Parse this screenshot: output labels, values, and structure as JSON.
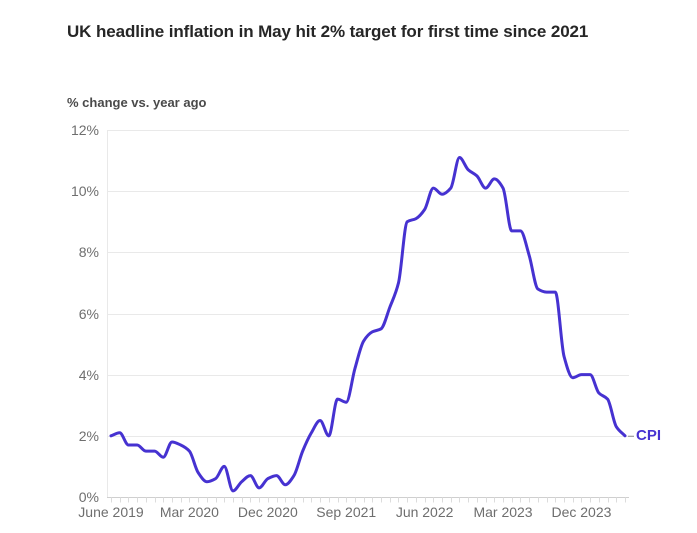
{
  "header": {
    "title": "UK headline inflation in May hit 2% target for first time since 2021",
    "subtitle": "% change vs. year ago"
  },
  "colors": {
    "line": "#4632d1",
    "series_label": "#4632d1",
    "grid": "#e9e9e9",
    "zero_axis": "#cfcfcf",
    "month_tick": "#dcdcdc",
    "axis_label": "#6e6e6e",
    "leader_dash": "#a3a3a3"
  },
  "chart_data": {
    "type": "line",
    "title": "UK headline inflation in May hit 2% target for first time since 2021",
    "ylabel": "% change vs. year ago",
    "x_unit": "month",
    "grid": true,
    "x": [
      "Jun 2019",
      "Jul 2019",
      "Aug 2019",
      "Sep 2019",
      "Oct 2019",
      "Nov 2019",
      "Dec 2019",
      "Jan 2020",
      "Feb 2020",
      "Mar 2020",
      "Apr 2020",
      "May 2020",
      "Jun 2020",
      "Jul 2020",
      "Aug 2020",
      "Sep 2020",
      "Oct 2020",
      "Nov 2020",
      "Dec 2020",
      "Jan 2021",
      "Feb 2021",
      "Mar 2021",
      "Apr 2021",
      "May 2021",
      "Jun 2021",
      "Jul 2021",
      "Aug 2021",
      "Sep 2021",
      "Oct 2021",
      "Nov 2021",
      "Dec 2021",
      "Jan 2022",
      "Feb 2022",
      "Mar 2022",
      "Apr 2022",
      "May 2022",
      "Jun 2022",
      "Jul 2022",
      "Aug 2022",
      "Sep 2022",
      "Oct 2022",
      "Nov 2022",
      "Dec 2022",
      "Jan 2023",
      "Feb 2023",
      "Mar 2023",
      "Apr 2023",
      "May 2023",
      "Jun 2023",
      "Jul 2023",
      "Aug 2023",
      "Sep 2023",
      "Oct 2023",
      "Nov 2023",
      "Dec 2023",
      "Jan 2024",
      "Feb 2024",
      "Mar 2024",
      "Apr 2024",
      "May 2024"
    ],
    "series": [
      {
        "name": "CPI",
        "values": [
          2.0,
          2.1,
          1.7,
          1.7,
          1.5,
          1.5,
          1.3,
          1.8,
          1.7,
          1.5,
          0.8,
          0.5,
          0.6,
          1.0,
          0.2,
          0.5,
          0.7,
          0.3,
          0.6,
          0.7,
          0.4,
          0.7,
          1.5,
          2.1,
          2.5,
          2.0,
          3.2,
          3.1,
          4.2,
          5.1,
          5.4,
          5.5,
          6.2,
          7.0,
          9.0,
          9.1,
          9.4,
          10.1,
          9.9,
          10.1,
          11.1,
          10.7,
          10.5,
          10.1,
          10.4,
          10.1,
          8.7,
          8.7,
          7.9,
          6.8,
          6.7,
          6.7,
          4.6,
          3.9,
          4.0,
          4.0,
          3.4,
          3.2,
          2.3,
          2.0
        ]
      }
    ],
    "y_axis": {
      "range": [
        0,
        12
      ],
      "ticks": [
        0,
        2,
        4,
        6,
        8,
        10,
        12
      ],
      "tick_labels": [
        "0%",
        "2%",
        "4%",
        "6%",
        "8%",
        "10%",
        "12%"
      ]
    },
    "x_axis": {
      "tick_labels": [
        {
          "index": 0,
          "label": "June 2019"
        },
        {
          "index": 9,
          "label": "Mar 2020"
        },
        {
          "index": 18,
          "label": "Dec 2020"
        },
        {
          "index": 27,
          "label": "Sep 2021"
        },
        {
          "index": 36,
          "label": "Jun 2022"
        },
        {
          "index": 45,
          "label": "Mar 2023"
        },
        {
          "index": 54,
          "label": "Dec 2023"
        }
      ]
    },
    "legend_position": "end-of-line"
  }
}
